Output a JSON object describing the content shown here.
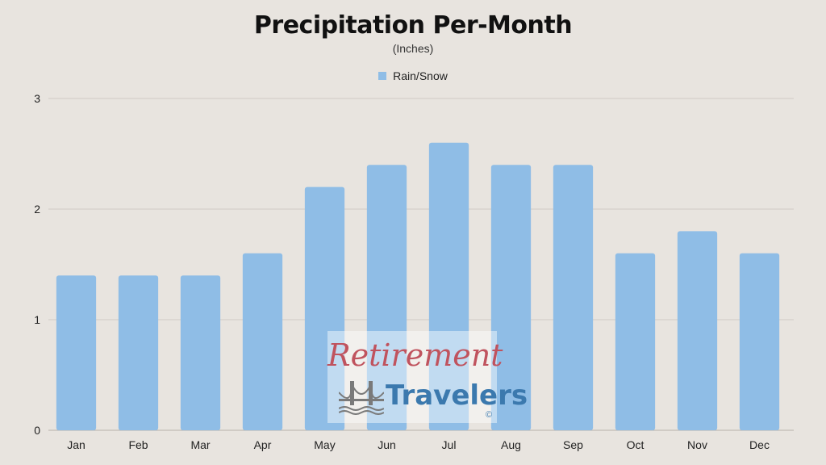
{
  "chart_data": {
    "type": "bar",
    "title": "Precipitation Per-Month",
    "subtitle": "(Inches)",
    "categories": [
      "Jan",
      "Feb",
      "Mar",
      "Apr",
      "May",
      "Jun",
      "Jul",
      "Aug",
      "Sep",
      "Oct",
      "Nov",
      "Dec"
    ],
    "series": [
      {
        "name": "Rain/Snow",
        "values": [
          1.4,
          1.4,
          1.4,
          1.6,
          2.2,
          2.4,
          2.6,
          2.4,
          2.4,
          1.6,
          1.8,
          1.6
        ],
        "color": "#8fbde6"
      }
    ],
    "ylim": [
      0,
      3
    ],
    "yticks": [
      "0",
      "1",
      "2",
      "3"
    ],
    "grid": true,
    "legend_position": "top-center"
  },
  "watermark": {
    "line1": "Retirement",
    "line2": "Travelers",
    "symbol": "©",
    "icon": "bridge-icon"
  },
  "colors": {
    "background": "#e8e4df",
    "bar": "#8fbde6",
    "grid": "#cfcac4",
    "watermark_red": "#c0535e",
    "watermark_blue": "#3b79ae"
  }
}
